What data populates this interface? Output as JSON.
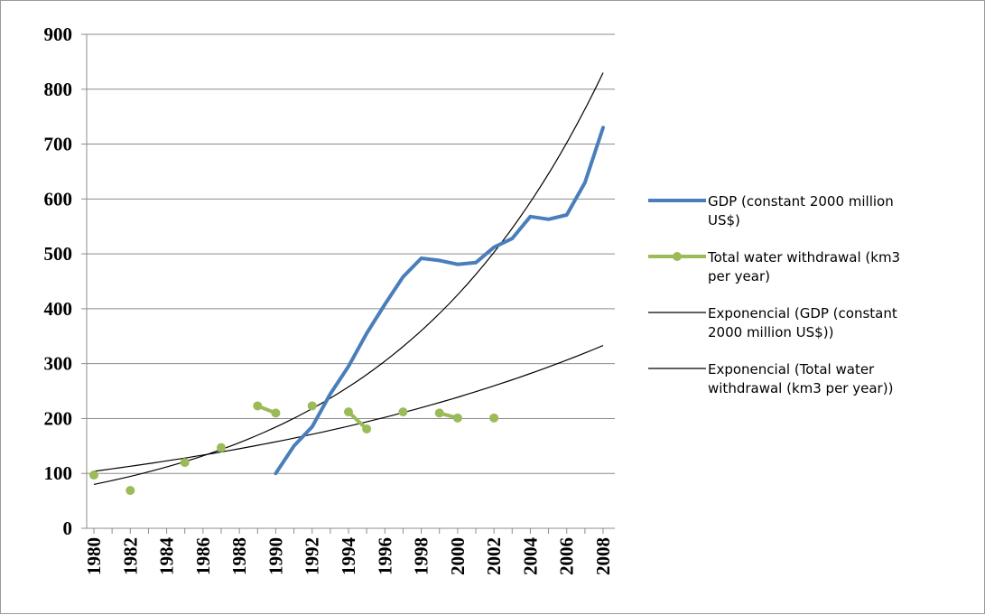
{
  "chart_data": {
    "type": "line",
    "title": "",
    "xlabel": "",
    "ylabel": "",
    "xlim": [
      1980,
      2008
    ],
    "ylim": [
      0,
      900
    ],
    "y_ticks": [
      "0",
      "100",
      "200",
      "300",
      "400",
      "500",
      "600",
      "700",
      "800",
      "900"
    ],
    "x_ticks": [
      "1980",
      "1982",
      "1984",
      "1986",
      "1988",
      "1990",
      "1992",
      "1994",
      "1996",
      "1998",
      "2000",
      "2002",
      "2004",
      "2006",
      "2008"
    ],
    "grid": "horizontal",
    "legend_position": "right",
    "series": [
      {
        "name": "GDP (constant 2000 million US$)",
        "color": "#4a7ebb",
        "style": "line",
        "x": [
          1990,
          1991,
          1992,
          1993,
          1994,
          1995,
          1996,
          1997,
          1998,
          1999,
          2000,
          2001,
          2002,
          2003,
          2004,
          2005,
          2006,
          2007,
          2008
        ],
        "y": [
          100,
          150,
          185,
          245,
          295,
          355,
          408,
          458,
          492,
          488,
          481,
          484,
          512,
          528,
          568,
          563,
          571,
          630,
          730
        ]
      },
      {
        "name": "Total water withdrawal (km3 per year)",
        "color": "#9bbb59",
        "style": "line-markers",
        "x": [
          1980,
          1982,
          1985,
          1987,
          1989,
          1990,
          1992,
          1994,
          1995,
          1997,
          1999,
          2000,
          2002
        ],
        "y": [
          97,
          69,
          120,
          147,
          223,
          210,
          223,
          212,
          181,
          212,
          210,
          201,
          201
        ],
        "segments": [
          [
            0
          ],
          [
            1
          ],
          [
            2
          ],
          [
            3
          ],
          [
            4,
            5
          ],
          [
            6
          ],
          [
            7,
            8
          ],
          [
            9
          ],
          [
            10,
            11
          ],
          [
            12
          ]
        ]
      },
      {
        "name": "Exponencial (GDP (constant 2000 million US$))",
        "color": "#000000",
        "style": "trendline",
        "x_range": [
          1980,
          2008
        ],
        "y_start": 80,
        "y_end": 830
      },
      {
        "name": "Exponencial (Total water withdrawal (km3 per year))",
        "color": "#000000",
        "style": "trendline",
        "x_range": [
          1980,
          2008
        ],
        "y_start": 104,
        "y_end": 333
      }
    ],
    "legend": [
      {
        "lines": [
          "GDP (constant 2000 million",
          "US$)"
        ],
        "color": "#4a7ebb",
        "marker": false,
        "width": 4
      },
      {
        "lines": [
          "Total water withdrawal (km3",
          "per year)"
        ],
        "color": "#9bbb59",
        "marker": true,
        "width": 4
      },
      {
        "lines": [
          "Exponencial (GDP (constant",
          "2000 million US$))"
        ],
        "color": "#000000",
        "marker": false,
        "width": 1.2
      },
      {
        "lines": [
          "Exponencial (Total water",
          "withdrawal (km3 per year))"
        ],
        "color": "#000000",
        "marker": false,
        "width": 1.2
      }
    ]
  }
}
